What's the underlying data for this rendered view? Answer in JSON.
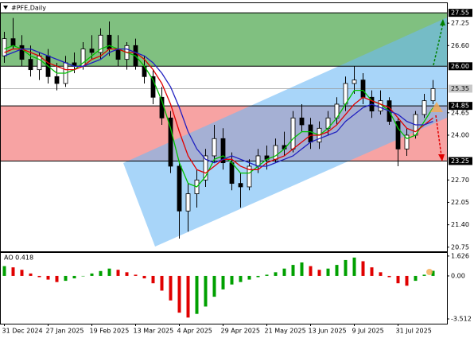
{
  "chart_data": {
    "type": "candlestick",
    "title": "#PFE,Daily",
    "categories": [
      "31 Dec 2024",
      null,
      null,
      null,
      null,
      "27 Jan 2025",
      null,
      null,
      null,
      null,
      "19 Feb 2025",
      null,
      null,
      null,
      null,
      "13 Mar 2025",
      null,
      null,
      null,
      null,
      "4 Apr 2025",
      null,
      null,
      null,
      null,
      "29 Apr 2025",
      null,
      null,
      null,
      null,
      "21 May 2025",
      null,
      null,
      null,
      null,
      "13 Jun 2025",
      null,
      null,
      null,
      null,
      "9 Jul 2025",
      null,
      null,
      null,
      null,
      "31 Jul 2025",
      null,
      null,
      null,
      null
    ],
    "open": [
      26.3,
      26.8,
      26.6,
      26.2,
      25.9,
      26.3,
      25.7,
      25.5,
      26.1,
      26.0,
      26.5,
      26.4,
      26.9,
      26.5,
      26.2,
      26.6,
      26.0,
      25.7,
      25.1,
      24.5,
      23.1,
      21.8,
      22.3,
      22.7,
      23.4,
      23.9,
      23.2,
      22.6,
      22.5,
      23.1,
      23.4,
      23.3,
      23.7,
      23.6,
      24.5,
      24.3,
      23.8,
      24.2,
      24.5,
      24.9,
      25.5,
      25.6,
      25.1,
      24.7,
      25.0,
      24.4,
      23.6,
      24.0,
      24.6,
      25.0
    ],
    "high": [
      27.0,
      27.4,
      26.9,
      26.6,
      26.4,
      26.5,
      26.1,
      26.3,
      26.4,
      26.7,
      26.9,
      27.1,
      27.3,
      26.9,
      26.7,
      26.8,
      26.3,
      25.9,
      25.4,
      24.7,
      23.2,
      22.6,
      23.0,
      23.6,
      24.3,
      24.2,
      23.5,
      22.9,
      23.3,
      23.6,
      23.7,
      23.9,
      24.1,
      24.7,
      24.9,
      24.5,
      24.4,
      24.7,
      25.1,
      25.7,
      26.0,
      25.8,
      25.3,
      25.3,
      25.1,
      24.5,
      24.2,
      24.7,
      25.2,
      25.6
    ],
    "low": [
      26.1,
      26.5,
      26.0,
      25.7,
      25.6,
      25.5,
      25.3,
      25.4,
      25.8,
      25.9,
      26.2,
      26.2,
      26.3,
      26.0,
      25.9,
      25.9,
      25.5,
      24.9,
      24.3,
      22.9,
      21.0,
      21.2,
      21.9,
      22.5,
      23.2,
      23.0,
      22.4,
      21.9,
      22.4,
      22.9,
      23.0,
      23.2,
      23.4,
      23.5,
      24.1,
      23.6,
      23.6,
      24.0,
      24.3,
      24.7,
      25.2,
      24.9,
      24.5,
      24.6,
      24.3,
      23.1,
      23.4,
      23.9,
      24.5,
      24.9
    ],
    "close": [
      26.8,
      26.6,
      26.2,
      25.9,
      26.3,
      25.7,
      25.5,
      26.1,
      26.0,
      26.5,
      26.4,
      26.9,
      26.5,
      26.2,
      26.6,
      26.0,
      25.7,
      25.1,
      24.5,
      23.1,
      21.8,
      22.3,
      22.7,
      23.4,
      23.9,
      23.2,
      22.6,
      22.5,
      23.1,
      23.4,
      23.3,
      23.7,
      23.6,
      24.5,
      24.3,
      23.8,
      24.2,
      24.5,
      24.9,
      25.5,
      25.6,
      25.1,
      24.7,
      25.0,
      24.4,
      23.6,
      24.0,
      24.6,
      25.0,
      25.35
    ],
    "ma": [
      {
        "color": "#00c000",
        "values": [
          26.5,
          26.6,
          26.5,
          26.3,
          26.2,
          26.0,
          25.8,
          25.8,
          25.9,
          26.1,
          26.3,
          26.5,
          26.6,
          26.5,
          26.4,
          26.3,
          26.0,
          25.6,
          25.0,
          24.2,
          23.2,
          22.6,
          22.5,
          22.8,
          23.3,
          23.4,
          23.2,
          22.9,
          22.9,
          23.1,
          23.3,
          23.4,
          23.6,
          23.9,
          24.1,
          24.1,
          24.0,
          24.2,
          24.5,
          24.9,
          25.3,
          25.3,
          25.0,
          24.9,
          24.7,
          24.2,
          23.9,
          24.0,
          24.4,
          24.8
        ]
      },
      {
        "color": "#e00000",
        "values": [
          26.4,
          26.5,
          26.5,
          26.4,
          26.3,
          26.1,
          26.0,
          25.9,
          25.9,
          26.0,
          26.2,
          26.3,
          26.5,
          26.5,
          26.4,
          26.4,
          26.2,
          25.9,
          25.5,
          24.9,
          24.1,
          23.4,
          23.0,
          22.9,
          23.1,
          23.3,
          23.3,
          23.1,
          23.0,
          23.0,
          23.2,
          23.3,
          23.4,
          23.6,
          23.8,
          24.0,
          24.0,
          24.1,
          24.3,
          24.6,
          24.9,
          25.1,
          25.0,
          24.9,
          24.8,
          24.5,
          24.2,
          24.1,
          24.3,
          24.5
        ]
      },
      {
        "color": "#2020c0",
        "values": [
          26.3,
          26.4,
          26.5,
          26.5,
          26.4,
          26.3,
          26.2,
          26.1,
          26.0,
          26.0,
          26.1,
          26.2,
          26.4,
          26.5,
          26.5,
          26.4,
          26.3,
          26.1,
          25.8,
          25.4,
          24.8,
          24.1,
          23.6,
          23.3,
          23.2,
          23.3,
          23.4,
          23.3,
          23.2,
          23.1,
          23.1,
          23.2,
          23.3,
          23.4,
          23.6,
          23.8,
          23.9,
          24.0,
          24.1,
          24.4,
          24.6,
          24.8,
          24.9,
          24.8,
          24.7,
          24.6,
          24.4,
          24.3,
          24.3,
          24.4
        ]
      }
    ],
    "ylim": [
      20.63,
      27.83
    ],
    "yticks": [
      27.25,
      {
        "value": 26.6,
        "label": "26.60"
      },
      24.65,
      {
        "value": 24,
        "label": "24.00"
      },
      {
        "value": 22.7,
        "label": "22.70"
      },
      22.05,
      {
        "value": 21.4,
        "label": "21.40"
      },
      20.75
    ],
    "levels": [
      27.55,
      {
        "value": 26,
        "label": "26.00"
      },
      24.85,
      23.25
    ],
    "zone_colors": [
      "#80c080",
      "#f7a3a3"
    ],
    "price_line": {
      "value": 25.35,
      "label": "25.35"
    },
    "ao": {
      "label": "AO 0.418",
      "up_color": "#00a000",
      "down_color": "#e00000",
      "values": [
        0.8,
        0.7,
        0.5,
        0.2,
        -0.1,
        -0.3,
        -0.5,
        -0.4,
        -0.2,
        0.0,
        0.2,
        0.4,
        0.6,
        0.5,
        0.3,
        0.1,
        -0.2,
        -0.6,
        -1.2,
        -2.0,
        -3.0,
        -3.4,
        -3.1,
        -2.5,
        -1.7,
        -1.1,
        -0.7,
        -0.5,
        -0.3,
        -0.1,
        0.1,
        0.3,
        0.6,
        0.9,
        1.1,
        0.8,
        0.5,
        0.6,
        0.9,
        1.3,
        1.5,
        1.2,
        0.7,
        0.3,
        -0.1,
        -0.6,
        -0.8,
        -0.4,
        0.1,
        0.418
      ],
      "ylim": [
        -3.9,
        1.88
      ],
      "yticks": [
        1.626,
        {
          "value": 0,
          "label": "0.00"
        },
        -3.512
      ]
    }
  }
}
